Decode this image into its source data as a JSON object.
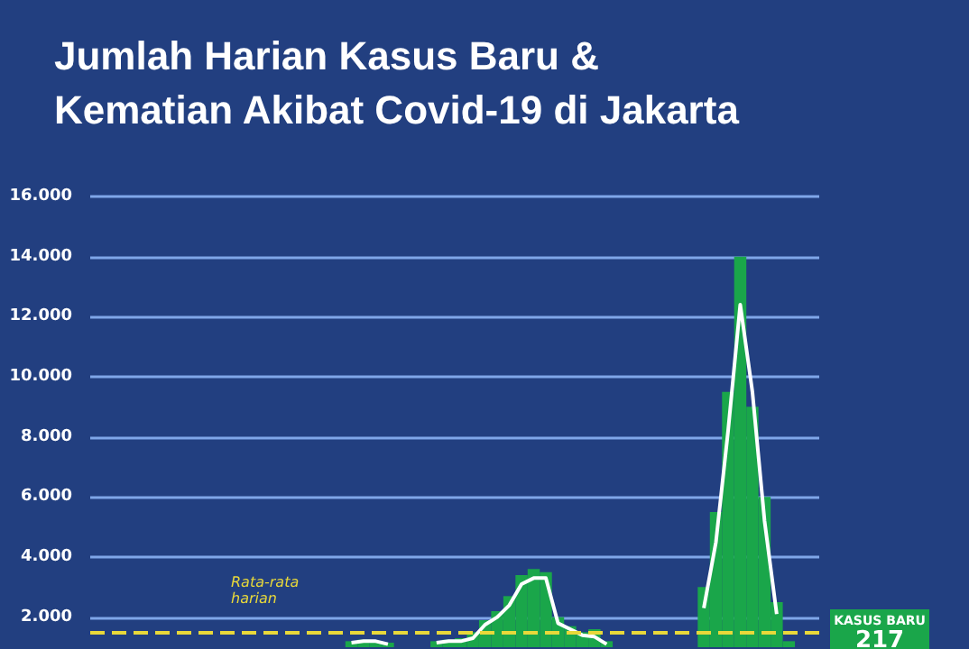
{
  "chart_data": {
    "type": "bar",
    "title": "Jumlah Harian Kasus Baru &\nKematian Akibat Covid-19 di Jakarta",
    "categories": [
      null,
      null,
      null,
      null,
      null,
      null,
      null,
      null,
      null,
      null,
      null,
      null,
      null,
      null,
      null,
      null,
      null,
      null,
      null,
      null,
      null,
      null,
      null,
      null,
      null,
      null,
      null,
      null,
      null,
      null,
      null,
      null,
      null,
      null,
      null,
      null,
      null,
      null,
      null,
      null,
      null,
      null,
      null,
      null,
      null,
      null,
      null,
      null,
      null,
      null,
      null,
      null,
      null,
      null,
      null,
      null,
      null,
      null,
      null,
      null
    ],
    "series": [
      {
        "color": "#1aa64a",
        "values": [
          null,
          null,
          null,
          null,
          null,
          null,
          null,
          null,
          null,
          null,
          null,
          null,
          null,
          null,
          null,
          null,
          null,
          null,
          null,
          null,
          null,
          1200,
          1250,
          1200,
          1150,
          null,
          null,
          null,
          1200,
          1250,
          1300,
          1500,
          1900,
          2200,
          2700,
          3400,
          3600,
          3500,
          2000,
          1700,
          1500,
          1600,
          1200,
          null,
          null,
          null,
          null,
          null,
          null,
          null,
          3000,
          5500,
          9500,
          14000,
          9000,
          6000,
          2500,
          1200,
          null,
          null
        ]
      },
      {
        "type": "line",
        "color": "#ffffff",
        "values": [
          null,
          null,
          null,
          null,
          null,
          null,
          null,
          null,
          null,
          null,
          null,
          null,
          null,
          null,
          null,
          null,
          null,
          null,
          null,
          null,
          null,
          1150,
          1200,
          1200,
          1100,
          null,
          null,
          null,
          1150,
          1200,
          1200,
          1300,
          1750,
          2000,
          2400,
          3100,
          3300,
          3300,
          1800,
          1600,
          1400,
          1350,
          1100,
          null,
          null,
          null,
          null,
          null,
          null,
          null,
          2300,
          4500,
          8200,
          12400,
          9500,
          5200,
          2100,
          null,
          null,
          null
        ]
      }
    ],
    "ylim": [
      1000,
      16000
    ],
    "yticks": [
      {
        "value": 2000,
        "label": "2.000"
      },
      {
        "value": 4000,
        "label": "4.000"
      },
      {
        "value": 6000,
        "label": "6.000"
      },
      {
        "value": 8000,
        "label": "8.000"
      },
      {
        "value": 10000,
        "label": "10.000"
      },
      {
        "value": 12000,
        "label": "12.000"
      },
      {
        "value": 14000,
        "label": "14.000"
      },
      {
        "value": 16000,
        "label": "16.000"
      }
    ],
    "grid": "y",
    "tick_labels": "y",
    "marker": "none",
    "ref_lines": [
      {
        "axis": "y",
        "value": 1500,
        "label": "Rata-rata harian",
        "color": "#e8d83a",
        "line_style": "dashed"
      }
    ],
    "annotations": [
      "KASUS BARU",
      "217"
    ]
  }
}
